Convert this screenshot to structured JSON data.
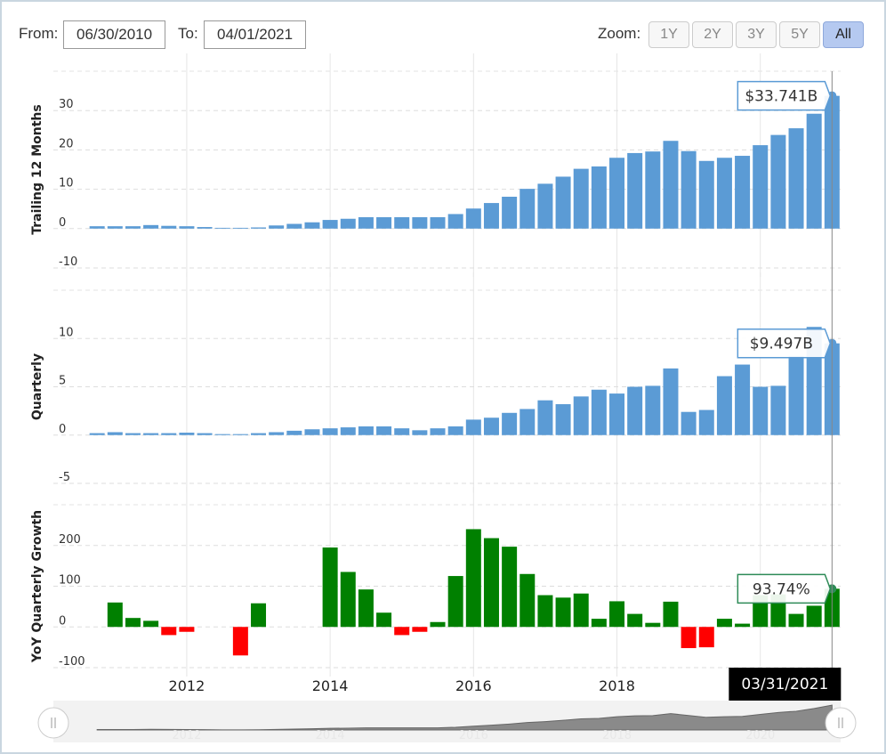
{
  "controls": {
    "from_label": "From:",
    "from_value": "06/30/2010",
    "to_label": "To:",
    "to_value": "04/01/2021",
    "zoom_label": "Zoom:",
    "zoom_buttons": [
      {
        "label": "1Y",
        "active": false
      },
      {
        "label": "2Y",
        "active": false
      },
      {
        "label": "3Y",
        "active": false
      },
      {
        "label": "5Y",
        "active": false
      },
      {
        "label": "All",
        "active": true
      }
    ]
  },
  "chart_data": [
    {
      "type": "bar",
      "y_label": "Trailing 12 Months",
      "color": "#5b9bd5",
      "x": [
        2010.75,
        2011,
        2011.25,
        2011.5,
        2011.75,
        2012,
        2012.25,
        2012.5,
        2012.75,
        2013,
        2013.25,
        2013.5,
        2013.75,
        2014,
        2014.25,
        2014.5,
        2014.75,
        2015,
        2015.25,
        2015.5,
        2015.75,
        2016,
        2016.25,
        2016.5,
        2016.75,
        2017,
        2017.25,
        2017.5,
        2017.75,
        2018,
        2018.25,
        2018.5,
        2018.75,
        2019,
        2019.25,
        2019.5,
        2019.75,
        2020,
        2020.25,
        2020.5,
        2020.75,
        2021
      ],
      "values": [
        0.6,
        0.6,
        0.6,
        0.9,
        0.7,
        0.6,
        0.4,
        0.2,
        0.2,
        0.3,
        0.8,
        1.2,
        1.6,
        2.2,
        2.5,
        2.9,
        2.9,
        2.9,
        2.9,
        2.9,
        3.7,
        5.1,
        6.5,
        8.1,
        10.1,
        11.4,
        13.2,
        15.2,
        15.8,
        18.0,
        19.2,
        19.6,
        22.3,
        19.7,
        17.2,
        18.0,
        18.5,
        21.2,
        23.8,
        25.5,
        29.2,
        33.741
      ],
      "value_labels": [
        null,
        null,
        null,
        null,
        null,
        null,
        null,
        null,
        null,
        null,
        null,
        null,
        null,
        null,
        null,
        null,
        null,
        null,
        null,
        null,
        null,
        null,
        null,
        null,
        null,
        null,
        null,
        null,
        null,
        null,
        null,
        null,
        null,
        null,
        null,
        null,
        null,
        null,
        null,
        null,
        null,
        "$33.741B"
      ],
      "xlim": [
        2010.14,
        2021.12
      ],
      "xticks": [
        2012,
        2014,
        2016,
        2018,
        2020
      ],
      "ylim": [
        -10,
        40
      ],
      "yticks": [
        -10,
        0,
        10,
        20,
        30
      ]
    },
    {
      "type": "bar",
      "y_label": "Quarterly",
      "color": "#5b9bd5",
      "x": [
        2010.75,
        2011,
        2011.25,
        2011.5,
        2011.75,
        2012,
        2012.25,
        2012.5,
        2012.75,
        2013,
        2013.25,
        2013.5,
        2013.75,
        2014,
        2014.25,
        2014.5,
        2014.75,
        2015,
        2015.25,
        2015.5,
        2015.75,
        2016,
        2016.25,
        2016.5,
        2016.75,
        2017,
        2017.25,
        2017.5,
        2017.75,
        2018,
        2018.25,
        2018.5,
        2018.75,
        2019,
        2019.25,
        2019.5,
        2019.75,
        2020,
        2020.25,
        2020.5,
        2020.75,
        2021
      ],
      "values": [
        0.2,
        0.3,
        0.2,
        0.2,
        0.2,
        0.25,
        0.2,
        0.1,
        0.1,
        0.2,
        0.3,
        0.45,
        0.6,
        0.7,
        0.8,
        0.9,
        0.9,
        0.7,
        0.5,
        0.7,
        0.9,
        1.6,
        1.8,
        2.3,
        2.7,
        3.6,
        3.2,
        4.0,
        4.7,
        4.3,
        5.0,
        5.1,
        6.9,
        2.4,
        2.6,
        6.1,
        7.3,
        5.0,
        5.1,
        8.2,
        11.2,
        9.497
      ],
      "value_labels": [
        null,
        null,
        null,
        null,
        null,
        null,
        null,
        null,
        null,
        null,
        null,
        null,
        null,
        null,
        null,
        null,
        null,
        null,
        null,
        null,
        null,
        null,
        null,
        null,
        null,
        null,
        null,
        null,
        null,
        null,
        null,
        null,
        null,
        null,
        null,
        null,
        null,
        null,
        null,
        null,
        null,
        "$9.497B"
      ],
      "xlim": [
        2010.14,
        2021.12
      ],
      "xticks": [
        2012,
        2014,
        2016,
        2018,
        2020
      ],
      "ylim": [
        -5,
        15
      ],
      "yticks": [
        -5,
        0,
        5,
        10
      ]
    },
    {
      "type": "bar",
      "y_label": "YoY Quarterly Growth",
      "positive_color": "#008000",
      "negative_color": "#ff0000",
      "tooltip_color": "#2e8b57",
      "x": [
        2010.75,
        2011,
        2011.25,
        2011.5,
        2011.75,
        2012,
        2012.25,
        2012.5,
        2012.75,
        2013,
        2013.25,
        2013.5,
        2013.75,
        2014,
        2014.25,
        2014.5,
        2014.75,
        2015,
        2015.25,
        2015.5,
        2015.75,
        2016,
        2016.25,
        2016.5,
        2016.75,
        2017,
        2017.25,
        2017.5,
        2017.75,
        2018,
        2018.25,
        2018.5,
        2018.75,
        2019,
        2019.25,
        2019.5,
        2019.75,
        2020,
        2020.25,
        2020.5,
        2020.75,
        2021
      ],
      "values": [
        null,
        60,
        22,
        15,
        -20,
        -12,
        null,
        null,
        -70,
        58,
        null,
        null,
        null,
        195,
        135,
        92,
        35,
        -20,
        -12,
        12,
        125,
        240,
        218,
        197,
        130,
        78,
        72,
        82,
        20,
        63,
        32,
        10,
        62,
        -52,
        -50,
        20,
        8,
        78,
        80,
        32,
        52,
        93.74
      ],
      "value_labels": [
        null,
        null,
        null,
        null,
        null,
        null,
        null,
        null,
        null,
        null,
        null,
        null,
        null,
        null,
        null,
        null,
        null,
        null,
        null,
        null,
        null,
        null,
        null,
        null,
        null,
        null,
        null,
        null,
        null,
        null,
        null,
        null,
        null,
        null,
        null,
        null,
        null,
        null,
        null,
        null,
        null,
        "93.74%"
      ],
      "xlim": [
        2010.14,
        2021.12
      ],
      "xticks": [
        2012,
        2014,
        2016,
        2018,
        2020
      ],
      "ylim": [
        -100,
        300
      ],
      "yticks": [
        -100,
        0,
        100,
        200
      ],
      "crosshair_label": "03/31/2021"
    }
  ]
}
